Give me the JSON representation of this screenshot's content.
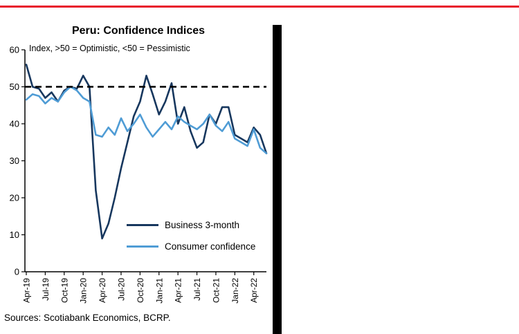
{
  "header": {
    "title": "Peru: Confidence Indices",
    "subtitle": "Index, >50 = Optimistic, <50 = Pessimistic"
  },
  "source": "Sources: Scotiabank Economics, BCRP.",
  "accent_colors": {
    "top_rule": "#e8112a",
    "side_bar": "#000000"
  },
  "chart_data": {
    "type": "line",
    "title": "Peru: Confidence Indices",
    "subtitle": "Index, >50 = Optimistic, <50 = Pessimistic",
    "x": [
      "Apr-19",
      "May-19",
      "Jun-19",
      "Jul-19",
      "Aug-19",
      "Sep-19",
      "Oct-19",
      "Nov-19",
      "Dec-19",
      "Jan-20",
      "Feb-20",
      "Mar-20",
      "Apr-20",
      "May-20",
      "Jun-20",
      "Jul-20",
      "Aug-20",
      "Sep-20",
      "Oct-20",
      "Nov-20",
      "Dec-20",
      "Jan-21",
      "Feb-21",
      "Mar-21",
      "Apr-21",
      "May-21",
      "Jun-21",
      "Jul-21",
      "Aug-21",
      "Sep-21",
      "Oct-21",
      "Nov-21",
      "Dec-21",
      "Jan-22",
      "Feb-22",
      "Mar-22",
      "Apr-22",
      "May-22",
      "Jun-22"
    ],
    "x_tick_step": 3,
    "y_ticks": [
      0,
      10,
      20,
      30,
      40,
      50,
      60
    ],
    "ylim": [
      0,
      60
    ],
    "ref_line": 50,
    "grid": false,
    "legend_position": "inside-lower-center",
    "series": [
      {
        "key": "business",
        "name": "Business 3-month",
        "color": "#17375e",
        "values": [
          56,
          50,
          49.5,
          47,
          48.5,
          46,
          49,
          50,
          49.5,
          53,
          50,
          22,
          9,
          13,
          20,
          28,
          35,
          42,
          46,
          53,
          48,
          42.5,
          46,
          51,
          40,
          44.5,
          38,
          33.5,
          35,
          42.5,
          40,
          44.5,
          44.5,
          37,
          36,
          35,
          39,
          37,
          32
        ]
      },
      {
        "key": "consumer",
        "name": "Consumer confidence",
        "color": "#4f9cd5",
        "values": [
          46.5,
          48,
          47.5,
          45.5,
          47,
          46,
          48.5,
          50,
          49,
          47,
          46,
          37,
          36.5,
          39,
          37,
          41.5,
          38,
          40,
          42.5,
          39,
          36.5,
          38.5,
          40.5,
          38.5,
          42,
          40.5,
          39.5,
          38.5,
          40,
          42.5,
          39.5,
          38,
          40.5,
          36,
          35,
          34,
          38.5,
          33.5,
          32
        ]
      }
    ]
  }
}
